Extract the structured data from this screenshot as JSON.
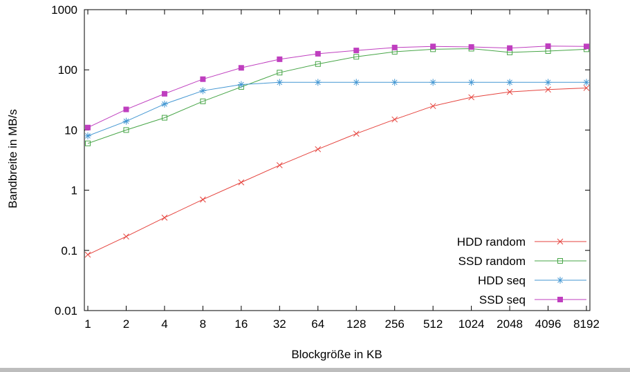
{
  "window": {
    "background_color": "#ffffff",
    "bottom_edge_color": "#bdbdbd"
  },
  "chart_data": {
    "type": "line",
    "title": "",
    "xlabel": "Blockgröße in KB",
    "ylabel": "Bandbreite in MB/s",
    "x_scale": "log2",
    "y_scale": "log10",
    "ylim": [
      0.01,
      1000
    ],
    "y_ticks": [
      "0.01",
      "0.1",
      "1",
      "10",
      "100",
      "1000"
    ],
    "categories": [
      1,
      2,
      4,
      8,
      16,
      32,
      64,
      128,
      256,
      512,
      1024,
      2048,
      4096,
      8192
    ],
    "grid": false,
    "legend_position": "inside-bottom-right",
    "axis_color": "#000000",
    "series": [
      {
        "name": "HDD random",
        "color": "#e5423c",
        "marker": "cross",
        "values": [
          0.085,
          0.17,
          0.35,
          0.7,
          1.35,
          2.6,
          4.8,
          8.7,
          15,
          25,
          35,
          43,
          47,
          50
        ]
      },
      {
        "name": "SSD random",
        "color": "#46a546",
        "marker": "square-open",
        "values": [
          6,
          10,
          16,
          30,
          52,
          90,
          125,
          165,
          200,
          220,
          225,
          195,
          205,
          220
        ]
      },
      {
        "name": "HDD seq",
        "color": "#4296d2",
        "marker": "asterisk",
        "values": [
          8,
          14,
          27,
          45,
          57,
          62,
          62,
          62,
          62,
          62,
          62,
          62,
          62,
          62
        ]
      },
      {
        "name": "SSD seq",
        "color": "#bf3ebf",
        "marker": "square-filled",
        "values": [
          11,
          22,
          40,
          70,
          108,
          150,
          185,
          210,
          235,
          245,
          240,
          230,
          248,
          245
        ]
      }
    ]
  }
}
